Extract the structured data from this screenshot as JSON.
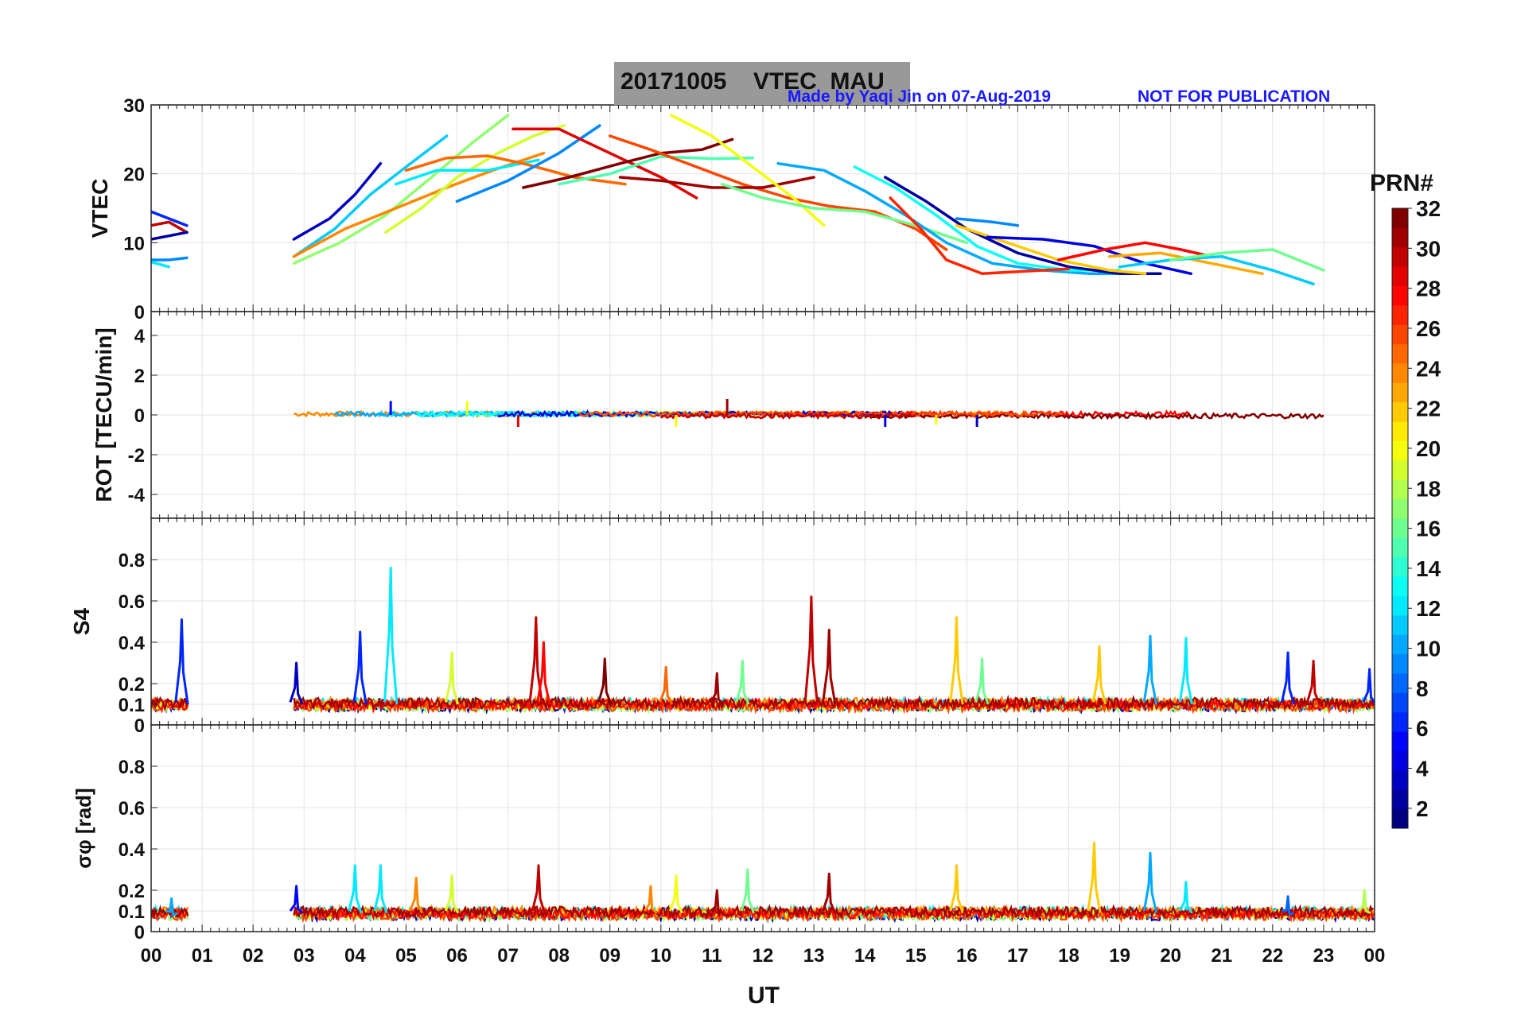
{
  "header": {
    "date": "20171005",
    "product": "VTEC",
    "station": "MAU",
    "credit": "Made by Yaqi Jin on 07-Aug-2019",
    "notice": "NOT FOR PUBLICATION"
  },
  "chart_data": {
    "type": "line",
    "title": "20171005    VTEC  MAU",
    "xlabel": "UT",
    "xlim": [
      0,
      24
    ],
    "x_ticks": [
      "00",
      "01",
      "02",
      "03",
      "04",
      "05",
      "06",
      "07",
      "08",
      "09",
      "10",
      "11",
      "12",
      "13",
      "14",
      "15",
      "16",
      "17",
      "18",
      "19",
      "20",
      "21",
      "22",
      "23",
      "00"
    ],
    "grid": true,
    "colorbar": {
      "label": "PRN#",
      "range": [
        1,
        32
      ],
      "ticks": [
        "2",
        "4",
        "6",
        "8",
        "10",
        "12",
        "14",
        "16",
        "18",
        "20",
        "22",
        "24",
        "26",
        "28",
        "30",
        "32"
      ],
      "colormap": "jet"
    },
    "panels": [
      {
        "id": "vtec",
        "ylabel": "VTEC",
        "ylim": [
          0,
          30
        ],
        "y_ticks": [
          "0",
          "10",
          "20",
          "30"
        ],
        "series": [
          {
            "prn": 3,
            "x": [
              2.8,
              3.5,
              4.0,
              4.5
            ],
            "y": [
              10.5,
              13.5,
              17,
              21.5
            ]
          },
          {
            "prn": 11,
            "x": [
              2.8,
              3.6,
              4.3,
              5.0,
              5.8
            ],
            "y": [
              8,
              12,
              17,
              21,
              25.5
            ]
          },
          {
            "prn": 17,
            "x": [
              2.8,
              3.7,
              4.6,
              5.5,
              6.3,
              7.0
            ],
            "y": [
              7,
              10,
              14,
              19.5,
              24.5,
              28.5
            ]
          },
          {
            "prn": 24,
            "x": [
              2.8,
              3.8,
              4.8,
              5.8,
              6.7,
              7.7
            ],
            "y": [
              8,
              12,
              15,
              18,
              20.5,
              23
            ]
          },
          {
            "prn": 19,
            "x": [
              4.6,
              5.3,
              6.0,
              6.8,
              7.5,
              8.1
            ],
            "y": [
              11.5,
              15,
              19.5,
              23,
              25.5,
              27
            ]
          },
          {
            "prn": 12,
            "x": [
              4.8,
              5.6,
              6.6,
              7.6
            ],
            "y": [
              18.5,
              20.5,
              20.5,
              22
            ]
          },
          {
            "prn": 25,
            "x": [
              5.0,
              5.8,
              6.6,
              7.3,
              8.3,
              9.3
            ],
            "y": [
              20.5,
              22.3,
              22.6,
              21.5,
              19.5,
              18.5
            ]
          },
          {
            "prn": 9,
            "x": [
              6.0,
              7.0,
              8.0,
              8.8
            ],
            "y": [
              16,
              19,
              23,
              27
            ]
          },
          {
            "prn": 29,
            "x": [
              7.1,
              8.0,
              9.0,
              10.0,
              10.7
            ],
            "y": [
              26.5,
              26.5,
              23,
              19.5,
              16.5
            ]
          },
          {
            "prn": 32,
            "x": [
              7.3,
              8.2,
              9.2,
              10.0,
              10.8,
              11.4
            ],
            "y": [
              18,
              19.5,
              21.5,
              23,
              23.5,
              25
            ]
          },
          {
            "prn": 15,
            "x": [
              8.0,
              9.0,
              10.0,
              11.0,
              11.8
            ],
            "y": [
              18.5,
              20,
              22.5,
              22.2,
              22.3
            ]
          },
          {
            "prn": 26,
            "x": [
              9.0,
              9.8,
              10.7,
              11.6,
              12.5,
              13.3,
              14.2,
              15.0,
              15.6
            ],
            "y": [
              25.5,
              23.5,
              21,
              18.5,
              16.5,
              15.3,
              14.5,
              12,
              9
            ]
          },
          {
            "prn": 31,
            "x": [
              9.2,
              10.0,
              11.0,
              12.0,
              13.0
            ],
            "y": [
              19.5,
              19,
              18,
              18,
              19.5
            ]
          },
          {
            "prn": 20,
            "x": [
              10.2,
              11.0,
              11.8,
              12.6,
              13.2
            ],
            "y": [
              28.5,
              25.5,
              21,
              16.5,
              12.5
            ]
          },
          {
            "prn": 16,
            "x": [
              11.2,
              12.0,
              13.0,
              14.0,
              15.0,
              16.0
            ],
            "y": [
              18.5,
              16.5,
              15,
              14.5,
              12.5,
              10
            ]
          },
          {
            "prn": 10,
            "x": [
              12.3,
              13.2,
              14.0,
              14.8,
              15.6,
              16.5,
              17.5,
              18.4,
              19.5
            ],
            "y": [
              21.5,
              20.5,
              17.5,
              14,
              10,
              7,
              6,
              5.5,
              5.5
            ]
          },
          {
            "prn": 13,
            "x": [
              13.8,
              14.6,
              15.4,
              16.2,
              17.0,
              18.0,
              19.0
            ],
            "y": [
              21,
              18,
              14,
              9.5,
              7,
              6,
              6
            ]
          },
          {
            "prn": 2,
            "x": [
              14.4,
              15.2,
              16.0,
              17.0,
              18.0,
              19.0,
              19.8
            ],
            "y": [
              19.5,
              16,
              12,
              8.5,
              6.5,
              5.5,
              5.5
            ]
          },
          {
            "prn": 27,
            "x": [
              14.5,
              15.1,
              15.6,
              16.3,
              17.0,
              18.0
            ],
            "y": [
              16.5,
              12,
              7.5,
              5.5,
              5.8,
              6.2
            ]
          },
          {
            "prn": 9,
            "x": [
              15.8,
              16.5,
              17.0
            ],
            "y": [
              13.5,
              13,
              12.5
            ]
          },
          {
            "prn": 22,
            "x": [
              15.8,
              16.8,
              17.8,
              18.8,
              19.5
            ],
            "y": [
              12.5,
              10,
              7.5,
              6,
              5.5
            ]
          },
          {
            "prn": 4,
            "x": [
              16.4,
              17.5,
              18.5,
              19.5,
              20.4
            ],
            "y": [
              10.8,
              10.5,
              9.5,
              7,
              5.5
            ]
          },
          {
            "prn": 28,
            "x": [
              17.8,
              18.7,
              19.5,
              20.2,
              20.8
            ],
            "y": [
              7.5,
              9,
              10,
              9,
              8
            ]
          },
          {
            "prn": 23,
            "x": [
              18.8,
              19.8,
              20.8,
              21.8
            ],
            "y": [
              8,
              8.5,
              7,
              5.5
            ]
          },
          {
            "prn": 11,
            "x": [
              19.0,
              20.0,
              21.0,
              22.0,
              22.8
            ],
            "y": [
              6.5,
              7.5,
              8,
              6,
              4
            ]
          },
          {
            "prn": 16,
            "x": [
              20.0,
              21.0,
              22.0,
              23.0
            ],
            "y": [
              7.5,
              8.5,
              9,
              6
            ]
          },
          {
            "prn": 30,
            "x": [
              0.0,
              0.35,
              0.7
            ],
            "y": [
              12.5,
              13,
              11.5
            ]
          },
          {
            "prn": 6,
            "x": [
              0.0,
              0.35,
              0.7
            ],
            "y": [
              14.5,
              13.5,
              12.5
            ]
          },
          {
            "prn": 2,
            "x": [
              0.0,
              0.35,
              0.7
            ],
            "y": [
              10.5,
              11,
              11.5
            ]
          },
          {
            "prn": 9,
            "x": [
              0.0,
              0.35,
              0.7
            ],
            "y": [
              7.5,
              7.5,
              7.8
            ]
          },
          {
            "prn": 12,
            "x": [
              0.0,
              0.35
            ],
            "y": [
              7.2,
              6.5
            ]
          }
        ]
      },
      {
        "id": "rot",
        "ylabel": "ROT [TECU/min]",
        "ylim": [
          -5.2,
          5.2
        ],
        "y_ticks": [
          "-4",
          "-2",
          "0",
          "2",
          "4"
        ],
        "noise_level": 0.12,
        "spikes": [
          {
            "prn": 5,
            "x": 4.7,
            "y": 0.7
          },
          {
            "prn": 20,
            "x": 6.2,
            "y": 0.7
          },
          {
            "prn": 31,
            "x": 11.3,
            "y": 0.8
          },
          {
            "prn": 29,
            "x": 7.2,
            "y": -0.6
          },
          {
            "prn": 4,
            "x": 14.4,
            "y": -0.6
          },
          {
            "prn": 20,
            "x": 15.4,
            "y": -0.5
          },
          {
            "prn": 3,
            "x": 16.2,
            "y": -0.6
          },
          {
            "prn": 20,
            "x": 10.3,
            "y": -0.6
          }
        ],
        "coverage": [
          2.8,
          23.0
        ]
      },
      {
        "id": "s4",
        "ylabel": "S4",
        "ylim": [
          0,
          1
        ],
        "y_ticks": [
          "0",
          "0.1",
          "0.2",
          "0.4",
          "0.6",
          "0.8"
        ],
        "baseline": 0.08,
        "peaks": [
          {
            "prn": 6,
            "x": 0.6,
            "y": 0.51
          },
          {
            "prn": 3,
            "x": 2.85,
            "y": 0.3
          },
          {
            "prn": 6,
            "x": 4.1,
            "y": 0.45
          },
          {
            "prn": 12,
            "x": 4.7,
            "y": 0.76
          },
          {
            "prn": 19,
            "x": 5.9,
            "y": 0.35
          },
          {
            "prn": 30,
            "x": 7.55,
            "y": 0.52
          },
          {
            "prn": 28,
            "x": 7.7,
            "y": 0.4
          },
          {
            "prn": 32,
            "x": 8.9,
            "y": 0.32
          },
          {
            "prn": 25,
            "x": 10.1,
            "y": 0.28
          },
          {
            "prn": 31,
            "x": 11.1,
            "y": 0.25
          },
          {
            "prn": 16,
            "x": 11.6,
            "y": 0.31
          },
          {
            "prn": 30,
            "x": 12.95,
            "y": 0.62
          },
          {
            "prn": 31,
            "x": 13.3,
            "y": 0.46
          },
          {
            "prn": 22,
            "x": 15.8,
            "y": 0.52
          },
          {
            "prn": 16,
            "x": 16.3,
            "y": 0.32
          },
          {
            "prn": 22,
            "x": 18.6,
            "y": 0.38
          },
          {
            "prn": 10,
            "x": 19.6,
            "y": 0.43
          },
          {
            "prn": 12,
            "x": 20.3,
            "y": 0.42
          },
          {
            "prn": 6,
            "x": 22.3,
            "y": 0.35
          },
          {
            "prn": 30,
            "x": 22.8,
            "y": 0.31
          },
          {
            "prn": 6,
            "x": 23.9,
            "y": 0.27
          }
        ]
      },
      {
        "id": "sigma_phi",
        "ylabel": "σφ [rad]",
        "ylim": [
          0,
          1
        ],
        "y_ticks": [
          "0",
          "0.1",
          "0.2",
          "0.4",
          "0.6",
          "0.8"
        ],
        "baseline": 0.07,
        "peaks": [
          {
            "prn": 10,
            "x": 0.4,
            "y": 0.16
          },
          {
            "prn": 5,
            "x": 2.85,
            "y": 0.22
          },
          {
            "prn": 12,
            "x": 4.0,
            "y": 0.32
          },
          {
            "prn": 12,
            "x": 4.5,
            "y": 0.32
          },
          {
            "prn": 24,
            "x": 5.2,
            "y": 0.26
          },
          {
            "prn": 19,
            "x": 5.9,
            "y": 0.27
          },
          {
            "prn": 30,
            "x": 7.6,
            "y": 0.32
          },
          {
            "prn": 24,
            "x": 9.8,
            "y": 0.22
          },
          {
            "prn": 20,
            "x": 10.3,
            "y": 0.27
          },
          {
            "prn": 31,
            "x": 11.1,
            "y": 0.2
          },
          {
            "prn": 16,
            "x": 11.7,
            "y": 0.3
          },
          {
            "prn": 31,
            "x": 13.3,
            "y": 0.28
          },
          {
            "prn": 22,
            "x": 15.8,
            "y": 0.32
          },
          {
            "prn": 22,
            "x": 18.5,
            "y": 0.43
          },
          {
            "prn": 10,
            "x": 19.6,
            "y": 0.38
          },
          {
            "prn": 12,
            "x": 20.3,
            "y": 0.24
          },
          {
            "prn": 8,
            "x": 22.3,
            "y": 0.17
          },
          {
            "prn": 18,
            "x": 23.8,
            "y": 0.2
          }
        ]
      }
    ]
  }
}
